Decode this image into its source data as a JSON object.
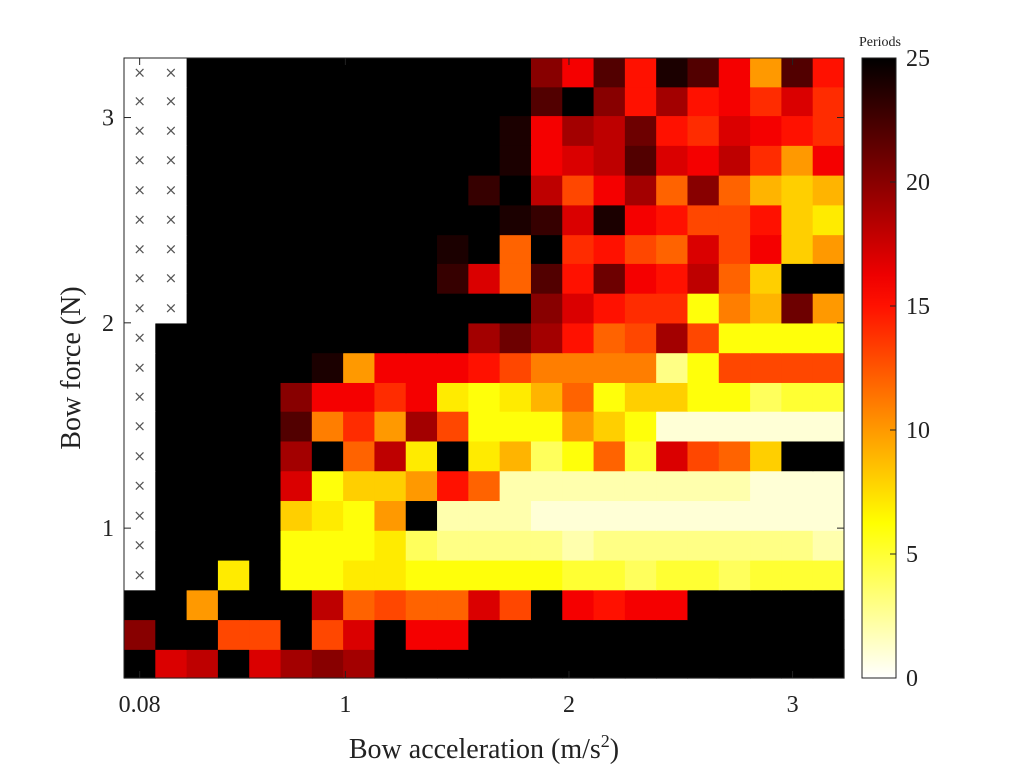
{
  "chart_data": {
    "type": "heatmap",
    "xlabel": "Bow acceleration (m/s2)",
    "xlabel_base": "Bow acceleration (m/s",
    "xlabel_sup": "2",
    "xlabel_tail": ")",
    "ylabel": "Bow force (N)",
    "x_ticks": [
      {
        "value": 0.08,
        "label": "0.08"
      },
      {
        "value": 1,
        "label": "1"
      },
      {
        "value": 2,
        "label": "2"
      },
      {
        "value": 3,
        "label": "3"
      }
    ],
    "y_ticks": [
      {
        "value": 1,
        "label": "1"
      },
      {
        "value": 2,
        "label": "2"
      },
      {
        "value": 3,
        "label": "3"
      }
    ],
    "x_centers": [
      0.08,
      0.22,
      0.36,
      0.5,
      0.64,
      0.78,
      0.92,
      1.06,
      1.2,
      1.34,
      1.48,
      1.62,
      1.76,
      1.9,
      2.04,
      2.18,
      2.32,
      2.46,
      2.6,
      2.74,
      2.88,
      3.02,
      3.16
    ],
    "y_centers": [
      0.34,
      0.48,
      0.63,
      0.77,
      0.92,
      1.06,
      1.21,
      1.35,
      1.5,
      1.64,
      1.78,
      1.93,
      2.07,
      2.22,
      2.36,
      2.5,
      2.65,
      2.79,
      2.94,
      3.08,
      3.22
    ],
    "xlim": [
      0.01,
      3.23
    ],
    "ylim": [
      0.27,
      3.29
    ],
    "colorbar": {
      "title": "Periods",
      "min": 0,
      "max": 25,
      "ticks": [
        0,
        5,
        10,
        15,
        20,
        25
      ],
      "colormap": "hot (reversed)"
    },
    "missing_marker": "×",
    "missing_value_note": "null = not measured (white cell with × marker)",
    "z": [
      [
        25,
        17,
        18,
        25,
        17,
        19,
        20,
        19,
        25,
        25,
        25,
        25,
        25,
        25,
        25,
        25,
        25,
        25,
        25,
        25,
        25,
        25,
        25
      ],
      [
        20,
        25,
        25,
        13,
        13,
        25,
        13,
        17,
        25,
        16,
        16,
        25,
        25,
        25,
        25,
        25,
        25,
        25,
        25,
        25,
        25,
        25,
        25
      ],
      [
        25,
        25,
        10,
        25,
        25,
        25,
        18,
        12,
        13,
        12,
        12,
        17,
        13,
        25,
        16,
        15,
        16,
        16,
        25,
        25,
        25,
        25,
        25
      ],
      [
        null,
        25,
        25,
        7,
        25,
        6,
        6,
        7,
        7,
        6,
        6,
        6,
        6,
        6,
        5,
        5,
        4,
        5,
        5,
        4,
        5,
        5,
        5
      ],
      [
        null,
        25,
        25,
        25,
        25,
        6,
        6,
        6,
        7,
        4,
        3,
        3,
        3,
        3,
        2,
        3,
        3,
        3,
        3,
        3,
        3,
        3,
        2
      ],
      [
        null,
        25,
        25,
        25,
        25,
        8,
        7,
        6,
        10,
        25,
        2,
        2,
        2,
        1,
        1,
        1,
        1,
        1,
        1,
        1,
        1,
        1,
        1
      ],
      [
        null,
        25,
        25,
        25,
        25,
        17,
        6,
        8,
        8,
        10,
        15,
        12,
        2,
        2,
        2,
        2,
        2,
        2,
        2,
        2,
        1,
        1,
        1
      ],
      [
        null,
        25,
        25,
        25,
        25,
        19,
        25,
        12,
        18,
        7,
        25,
        7,
        9,
        4,
        6,
        12,
        5,
        17,
        13,
        12,
        8,
        25,
        25
      ],
      [
        null,
        25,
        25,
        25,
        25,
        22,
        11,
        14,
        10,
        19,
        13,
        6,
        6,
        6,
        10,
        8,
        6,
        1,
        1,
        1,
        1,
        1,
        1
      ],
      [
        null,
        25,
        25,
        25,
        25,
        20,
        16,
        16,
        14,
        16,
        7,
        6,
        7,
        9,
        12,
        6,
        8,
        8,
        6,
        6,
        4,
        5,
        5
      ],
      [
        null,
        25,
        25,
        25,
        25,
        25,
        24,
        10,
        16,
        16,
        16,
        15,
        13,
        11,
        11,
        11,
        11,
        3,
        6,
        13,
        13,
        13,
        13
      ],
      [
        null,
        25,
        25,
        25,
        25,
        25,
        25,
        25,
        25,
        25,
        25,
        19,
        21,
        19,
        15,
        12,
        13,
        19,
        13,
        6,
        6,
        6,
        6
      ],
      [
        null,
        null,
        25,
        25,
        25,
        25,
        25,
        25,
        25,
        25,
        25,
        25,
        25,
        20,
        17,
        15,
        14,
        14,
        6,
        11,
        9,
        21,
        10
      ],
      [
        null,
        null,
        25,
        25,
        25,
        25,
        25,
        25,
        25,
        25,
        23,
        17,
        12,
        22,
        15,
        21,
        16,
        15,
        18,
        12,
        8,
        25,
        25
      ],
      [
        null,
        null,
        25,
        25,
        25,
        25,
        25,
        25,
        25,
        25,
        24,
        25,
        12,
        25,
        14,
        15,
        13,
        12,
        17,
        13,
        16,
        8,
        10
      ],
      [
        null,
        null,
        25,
        25,
        25,
        25,
        25,
        25,
        25,
        25,
        25,
        25,
        24,
        23,
        17,
        24,
        16,
        15,
        13,
        13,
        15,
        8,
        7
      ],
      [
        null,
        null,
        25,
        25,
        25,
        25,
        25,
        25,
        25,
        25,
        25,
        23,
        25,
        18,
        13,
        16,
        19,
        12,
        20,
        12,
        9,
        8,
        9
      ],
      [
        null,
        null,
        25,
        25,
        25,
        25,
        25,
        25,
        25,
        25,
        25,
        25,
        24,
        16,
        17,
        18,
        22,
        17,
        16,
        18,
        14,
        10,
        16
      ],
      [
        null,
        null,
        25,
        25,
        25,
        25,
        25,
        25,
        25,
        25,
        25,
        25,
        24,
        16,
        19,
        18,
        21,
        15,
        14,
        17,
        16,
        15,
        14
      ],
      [
        null,
        null,
        25,
        25,
        25,
        25,
        25,
        25,
        25,
        25,
        25,
        25,
        25,
        22,
        25,
        20,
        15,
        19,
        15,
        16,
        14,
        17,
        14
      ],
      [
        null,
        null,
        25,
        25,
        25,
        25,
        25,
        25,
        25,
        25,
        25,
        25,
        25,
        20,
        16,
        22,
        15,
        24,
        22,
        16,
        10,
        22,
        15
      ]
    ]
  }
}
